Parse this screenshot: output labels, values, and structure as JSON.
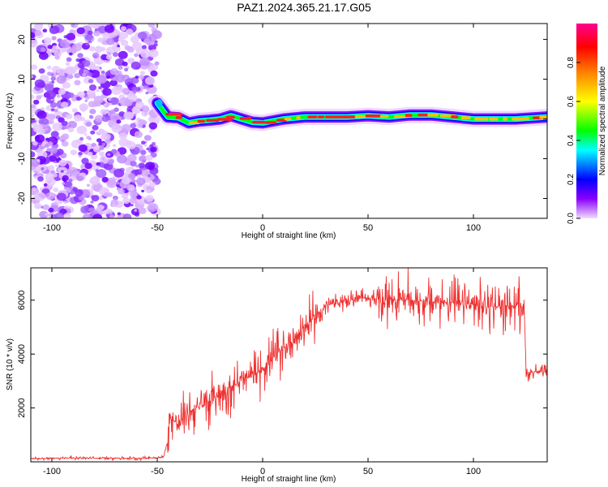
{
  "title": "PAZ1.2024.365.21.17.G05",
  "chart_data": [
    {
      "type": "heatmap",
      "xlabel": "Height of straight line (km)",
      "ylabel": "Frequency (Hz)",
      "xlim": [
        -110,
        135
      ],
      "ylim": [
        -25,
        24
      ],
      "xticks": [
        -100,
        -50,
        0,
        50,
        100
      ],
      "yticks": [
        -20,
        -10,
        0,
        10,
        20
      ],
      "colorbar": {
        "label": "Normalized spectral amplitude",
        "range": [
          0,
          1
        ],
        "ticks": [
          "0.0",
          "0.2",
          "0.4",
          "0.6",
          "0.8"
        ],
        "colormap": [
          "#e8c8ff",
          "#7a00ff",
          "#0000ff",
          "#00ffff",
          "#00ff00",
          "#ffff00",
          "#ff8000",
          "#ff0000",
          "#ff00aa"
        ]
      },
      "noise_region_x": [
        -110,
        -50
      ],
      "signal_ridge": {
        "x": [
          -50,
          -45,
          -40,
          -35,
          -30,
          -25,
          -20,
          -15,
          -10,
          -5,
          0,
          10,
          20,
          30,
          40,
          50,
          60,
          70,
          80,
          90,
          100,
          110,
          120,
          135
        ],
        "y": [
          4,
          0.5,
          0.3,
          -1,
          -0.5,
          -0.3,
          0,
          0.8,
          0,
          -0.8,
          -1,
          0,
          0.5,
          0.5,
          0.5,
          0.8,
          0.5,
          1,
          1,
          0.5,
          0,
          0,
          0,
          0.5
        ]
      }
    },
    {
      "type": "line",
      "xlabel": "Height of straight line (km)",
      "ylabel": "SNR (10 * v/v)",
      "xlim": [
        -110,
        135
      ],
      "ylim": [
        0,
        7200
      ],
      "xticks": [
        -100,
        -50,
        0,
        50,
        100
      ],
      "yticks": [
        2000,
        4000,
        6000
      ],
      "series": [
        {
          "color": "#f03030",
          "x": [
            -110,
            -100,
            -90,
            -80,
            -70,
            -60,
            -50,
            -47,
            -45,
            -44,
            -42,
            -40,
            -35,
            -30,
            -25,
            -20,
            -15,
            -10,
            -5,
            0,
            5,
            10,
            15,
            20,
            25,
            30,
            40,
            50,
            60,
            70,
            80,
            90,
            100,
            110,
            120,
            124,
            125,
            130,
            135
          ],
          "y": [
            120,
            130,
            150,
            130,
            140,
            130,
            150,
            180,
            800,
            1700,
            1500,
            1400,
            1900,
            2000,
            2300,
            2500,
            2800,
            3000,
            3200,
            3500,
            3900,
            4200,
            4600,
            5000,
            5400,
            5800,
            6000,
            6100,
            6050,
            6000,
            5950,
            5900,
            5800,
            5750,
            5800,
            5900,
            3300,
            3350,
            3300
          ]
        }
      ]
    }
  ]
}
